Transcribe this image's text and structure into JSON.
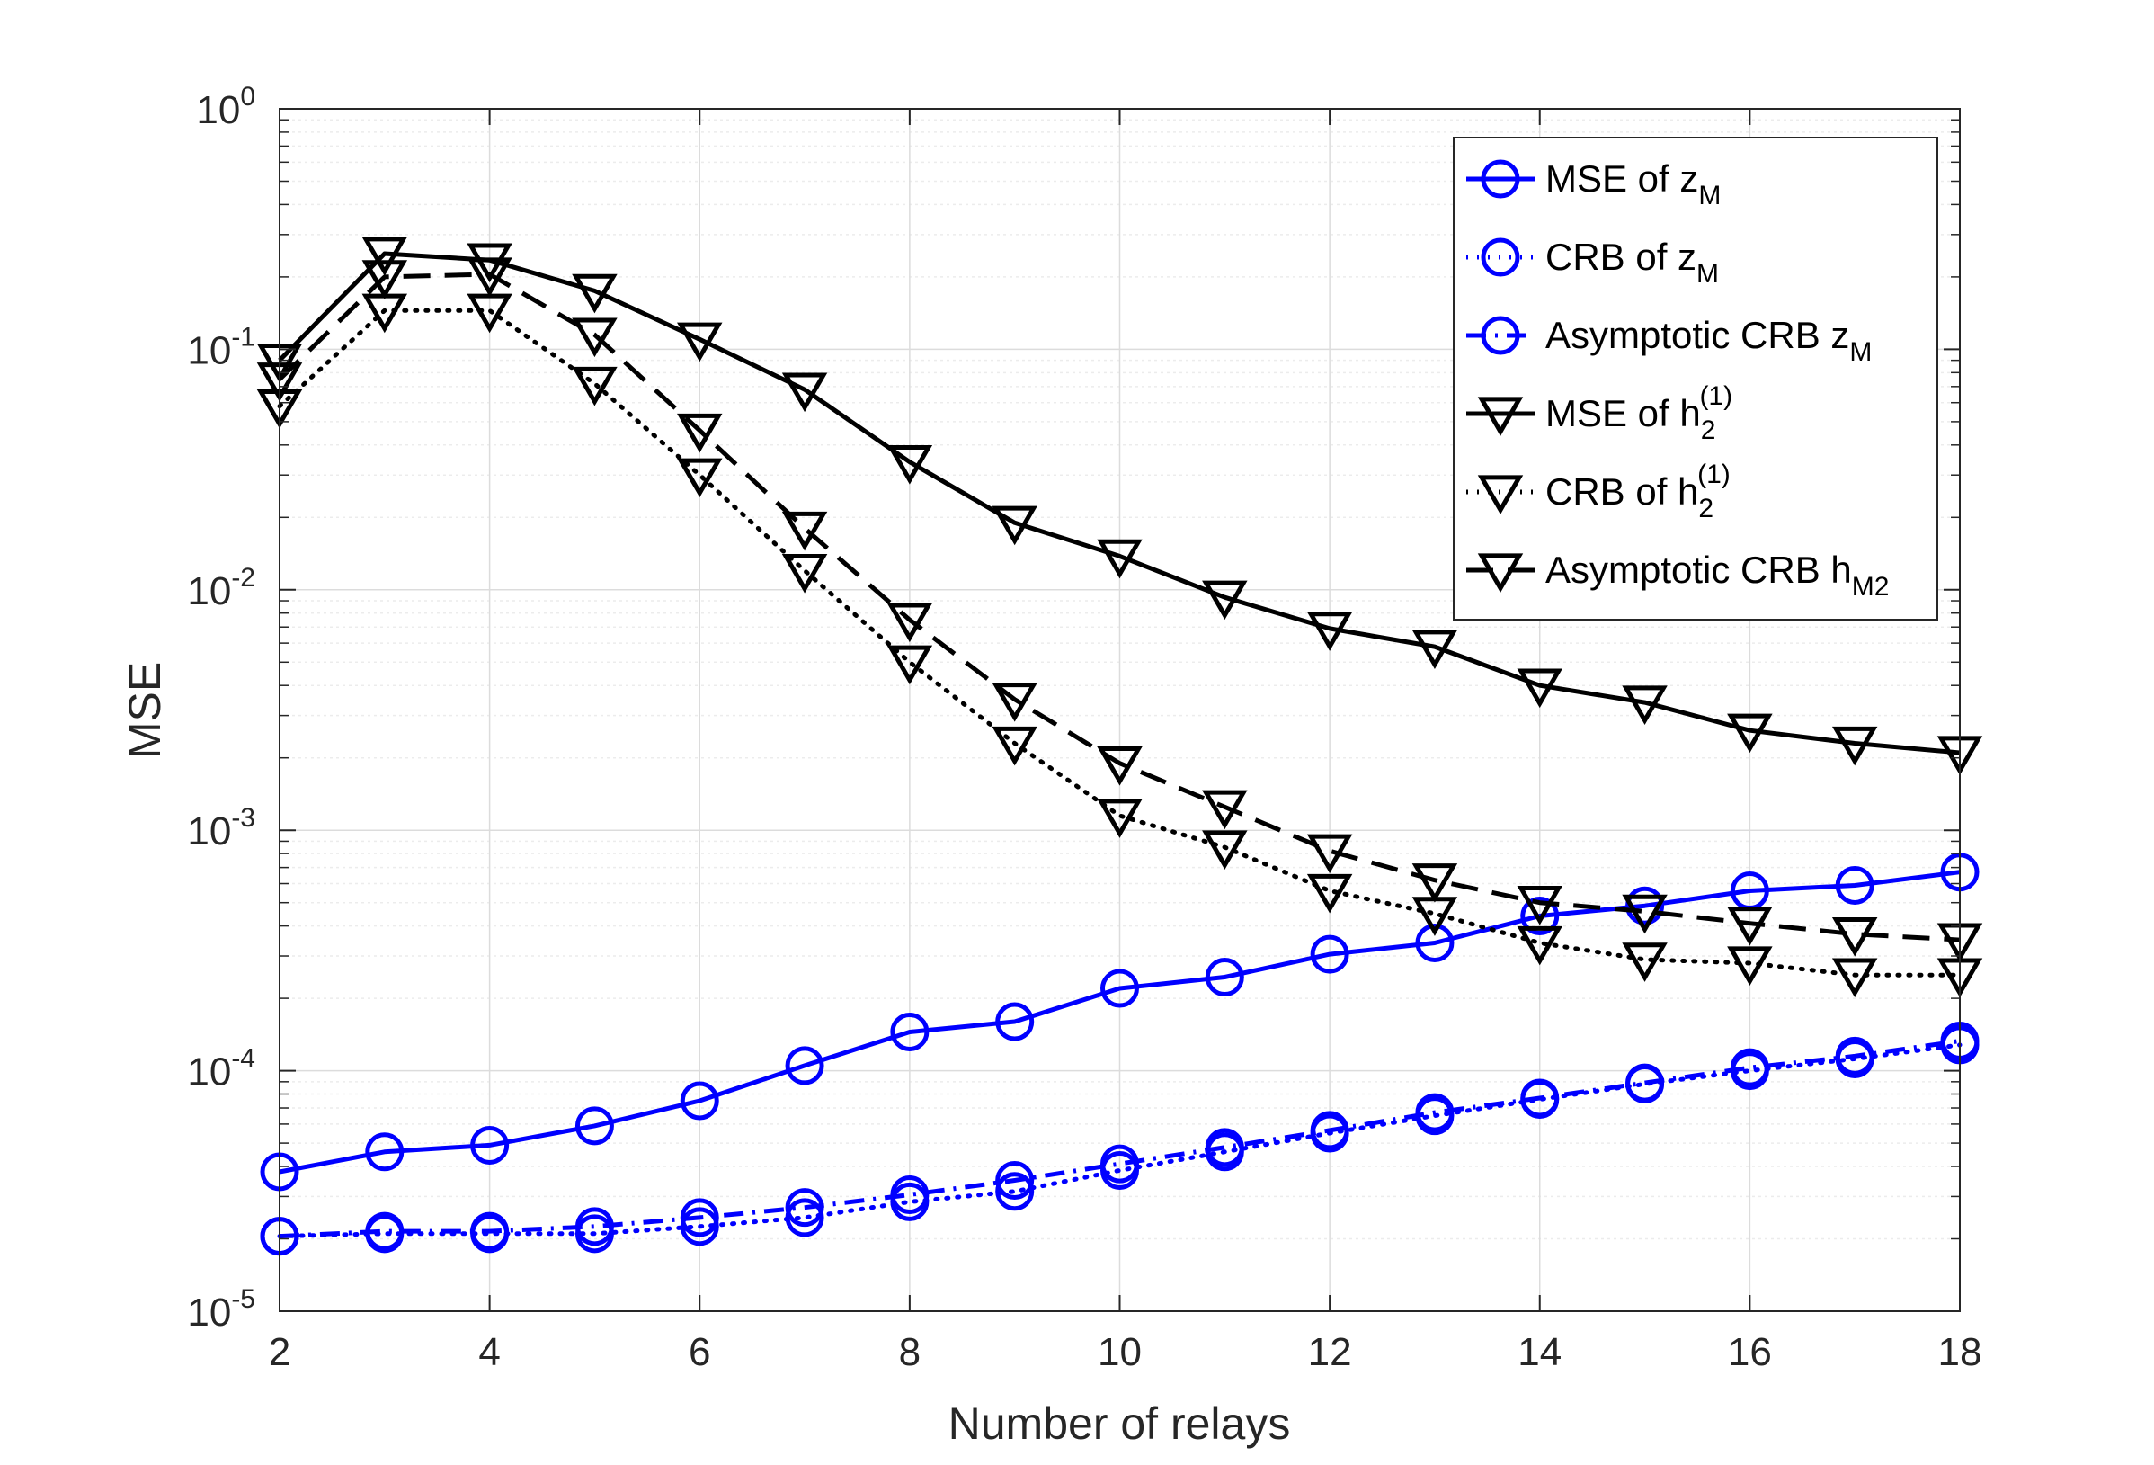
{
  "chart_data": {
    "type": "line",
    "xlabel": "Number of relays",
    "ylabel": "MSE",
    "yscale": "log",
    "xlim": [
      2,
      18
    ],
    "ylim": [
      1e-05,
      1
    ],
    "xticks": [
      2,
      4,
      6,
      8,
      10,
      12,
      14,
      16,
      18
    ],
    "xtick_labels": [
      "2",
      "4",
      "6",
      "8",
      "10",
      "12",
      "14",
      "16",
      "18"
    ],
    "yticks": [
      {
        "value": 1e-05,
        "base": "10",
        "exp": "-5"
      },
      {
        "value": 0.0001,
        "base": "10",
        "exp": "-4"
      },
      {
        "value": 0.001,
        "base": "10",
        "exp": "-3"
      },
      {
        "value": 0.01,
        "base": "10",
        "exp": "-2"
      },
      {
        "value": 0.1,
        "base": "10",
        "exp": "-1"
      },
      {
        "value": 1,
        "base": "10",
        "exp": "0"
      }
    ],
    "grid": true,
    "legend_position": "top-right",
    "x": [
      2,
      3,
      4,
      5,
      6,
      7,
      8,
      9,
      10,
      11,
      12,
      13,
      14,
      15,
      16,
      17,
      18
    ],
    "series": [
      {
        "name": "MSE of z_M",
        "legend_main": "MSE of z",
        "legend_sub": "M",
        "legend_sup": "",
        "color": "#0000ff",
        "dash": "solid",
        "marker": "circle",
        "values": [
          3.8e-05,
          4.6e-05,
          4.9e-05,
          5.9e-05,
          7.5e-05,
          0.000105,
          0.000145,
          0.00016,
          0.00022,
          0.000245,
          0.000305,
          0.00034,
          0.00044,
          0.000485,
          0.00056,
          0.00059,
          0.00067
        ]
      },
      {
        "name": "CRB of z_M",
        "legend_main": "CRB of z",
        "legend_sub": "M",
        "legend_sup": "",
        "color": "#0000ff",
        "dash": "dotted",
        "marker": "circle",
        "values": [
          2.05e-05,
          2.1e-05,
          2.1e-05,
          2.1e-05,
          2.25e-05,
          2.45e-05,
          2.85e-05,
          3.15e-05,
          3.85e-05,
          4.6e-05,
          5.5e-05,
          6.5e-05,
          7.6e-05,
          8.8e-05,
          0.0001,
          0.000112,
          0.000128
        ]
      },
      {
        "name": "Asymptotic CRB z_M",
        "legend_main": "Asymptotic CRB z",
        "legend_sub": "M",
        "legend_sup": "",
        "color": "#0000ff",
        "dash": "dashdot",
        "marker": "circle",
        "values": [
          2.05e-05,
          2.15e-05,
          2.15e-05,
          2.25e-05,
          2.45e-05,
          2.7e-05,
          3.05e-05,
          3.5e-05,
          4.1e-05,
          4.8e-05,
          5.65e-05,
          6.7e-05,
          7.7e-05,
          8.9e-05,
          0.000103,
          0.000115,
          0.000133
        ]
      },
      {
        "name": "MSE of h_2^(1)",
        "legend_main": "MSE of h",
        "legend_sub": "2",
        "legend_sup": "(1)",
        "color": "#000000",
        "dash": "solid",
        "marker": "triangle-down",
        "values": [
          0.09,
          0.25,
          0.235,
          0.175,
          0.11,
          0.068,
          0.034,
          0.019,
          0.0138,
          0.0093,
          0.0069,
          0.0058,
          0.004,
          0.0034,
          0.0026,
          0.0023,
          0.0021
        ]
      },
      {
        "name": "CRB of h_2^(1)",
        "legend_main": "CRB of h",
        "legend_sub": "2",
        "legend_sup": "(1)",
        "color": "#000000",
        "dash": "dotted",
        "marker": "triangle-down",
        "values": [
          0.058,
          0.145,
          0.145,
          0.072,
          0.03,
          0.012,
          0.005,
          0.0023,
          0.00115,
          0.00085,
          0.00056,
          0.00045,
          0.00034,
          0.00029,
          0.00028,
          0.00025,
          0.00025
        ]
      },
      {
        "name": "Asymptotic CRB h_M2",
        "legend_main": "Asymptotic CRB h",
        "legend_sub": "M2",
        "legend_sup": "",
        "color": "#000000",
        "dash": "dashed",
        "marker": "triangle-down",
        "values": [
          0.075,
          0.2,
          0.205,
          0.115,
          0.046,
          0.018,
          0.0075,
          0.0035,
          0.0019,
          0.00125,
          0.00082,
          0.00062,
          0.0005,
          0.00046,
          0.00041,
          0.00037,
          0.00035
        ]
      }
    ]
  }
}
